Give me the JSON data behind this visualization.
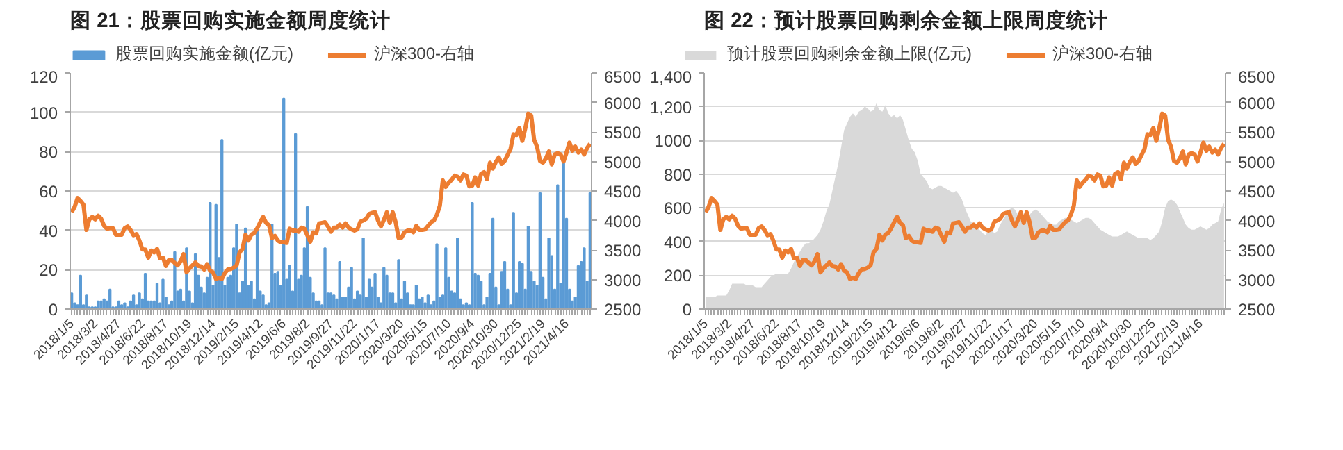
{
  "chart_data": [
    {
      "type": "bar",
      "title": "图 21：股票回购实施金额周度统计",
      "categories": [
        "2018/1/5",
        null,
        null,
        null,
        null,
        null,
        null,
        null,
        "2018/3/2",
        null,
        null,
        null,
        null,
        null,
        null,
        null,
        "2018/4/27",
        null,
        null,
        null,
        null,
        null,
        null,
        null,
        "2018/6/22",
        null,
        null,
        null,
        null,
        null,
        null,
        null,
        "2018/8/17",
        null,
        null,
        null,
        null,
        null,
        null,
        null,
        "2018/10/19",
        null,
        null,
        null,
        null,
        null,
        null,
        null,
        "2018/12/14",
        null,
        null,
        null,
        null,
        null,
        null,
        null,
        "2019/2/15",
        null,
        null,
        null,
        null,
        null,
        null,
        null,
        "2019/4/12",
        null,
        null,
        null,
        null,
        null,
        null,
        null,
        "2019/6/6",
        null,
        null,
        null,
        null,
        null,
        null,
        null,
        "2019/8/2",
        null,
        null,
        null,
        null,
        null,
        null,
        null,
        "2019/9/27",
        null,
        null,
        null,
        null,
        null,
        null,
        null,
        "2019/11/22",
        null,
        null,
        null,
        null,
        null,
        null,
        null,
        "2020/1/17",
        null,
        null,
        null,
        null,
        null,
        null,
        null,
        "2020/3/20",
        null,
        null,
        null,
        null,
        null,
        null,
        null,
        "2020/5/15",
        null,
        null,
        null,
        null,
        null,
        null,
        null,
        "2020/7/10",
        null,
        null,
        null,
        null,
        null,
        null,
        null,
        "2020/9/4",
        null,
        null,
        null,
        null,
        null,
        null,
        null,
        "2020/10/30",
        null,
        null,
        null,
        null,
        null,
        null,
        null,
        "2020/12/25",
        null,
        null,
        null,
        null,
        null,
        null,
        null,
        "2021/2/19",
        null,
        null,
        null,
        null,
        null,
        null,
        null,
        "2021/4/16",
        null,
        null,
        null,
        null,
        null,
        null,
        null,
        null
      ],
      "series": [
        {
          "name": "股票回购实施金额(亿元)",
          "color": "#5b9bd5",
          "values": [
            8,
            3,
            2,
            17,
            2,
            7,
            1,
            1,
            1,
            4,
            4,
            5,
            4,
            10,
            1,
            1,
            4,
            2,
            3,
            1,
            4,
            7,
            2,
            8,
            5,
            18,
            4,
            4,
            4,
            13,
            3,
            15,
            6,
            2,
            4,
            29,
            9,
            10,
            4,
            31,
            9,
            3,
            28,
            17,
            11,
            8,
            16,
            54,
            12,
            53,
            26,
            86,
            12,
            16,
            17,
            31,
            43,
            8,
            14,
            41,
            12,
            14,
            5,
            40,
            9,
            7,
            2,
            3,
            43,
            18,
            19,
            12,
            107,
            15,
            22,
            9,
            89,
            15,
            17,
            31,
            52,
            16,
            8,
            4,
            4,
            2,
            31,
            8,
            8,
            7,
            5,
            24,
            6,
            6,
            11,
            21,
            5,
            9,
            7,
            36,
            6,
            15,
            11,
            18,
            6,
            3,
            21,
            17,
            8,
            8,
            3,
            25,
            5,
            14,
            8,
            2,
            2,
            12,
            5,
            6,
            3,
            7,
            2,
            4,
            33,
            6,
            7,
            31,
            16,
            9,
            8,
            36,
            5,
            2,
            3,
            2,
            54,
            18,
            17,
            14,
            2,
            6,
            18,
            46,
            11,
            2,
            19,
            24,
            10,
            2,
            49,
            8,
            24,
            23,
            10,
            42,
            19,
            14,
            12,
            59,
            16,
            5,
            36,
            27,
            10,
            63,
            13,
            75,
            46,
            10,
            4,
            6,
            22,
            24,
            31,
            14,
            59
          ]
        },
        {
          "name": "沪深300-右轴",
          "type": "line",
          "axis": "y2",
          "color": "#ed7d31",
          "values": [
            4140,
            4230,
            4380,
            4330,
            4270,
            3840,
            4020,
            4060,
            4020,
            4080,
            4030,
            3910,
            3860,
            3870,
            3870,
            3760,
            3760,
            3760,
            3870,
            3900,
            3840,
            3750,
            3770,
            3660,
            3510,
            3510,
            3370,
            3490,
            3460,
            3520,
            3360,
            3370,
            3230,
            3330,
            3330,
            3280,
            3240,
            3310,
            3430,
            3120,
            3190,
            3240,
            3290,
            3230,
            3220,
            3170,
            3260,
            3150,
            3120,
            3010,
            3030,
            3010,
            3110,
            3170,
            3180,
            3200,
            3240,
            3460,
            3520,
            3760,
            3660,
            3760,
            3790,
            3870,
            3970,
            4060,
            3960,
            3920,
            3700,
            3740,
            3660,
            3630,
            3630,
            3620,
            3860,
            3830,
            3830,
            3810,
            3880,
            3860,
            3750,
            3640,
            3800,
            3780,
            3950,
            3960,
            3970,
            3900,
            3810,
            3880,
            3880,
            3930,
            3880,
            3950,
            3880,
            3850,
            3830,
            3850,
            3980,
            4000,
            4030,
            4110,
            4130,
            4140,
            4000,
            3900,
            4010,
            4140,
            3960,
            4140,
            3970,
            3700,
            3710,
            3800,
            3830,
            3830,
            3800,
            3910,
            3840,
            3840,
            3850,
            3910,
            3970,
            4000,
            4100,
            4250,
            4680,
            4570,
            4640,
            4690,
            4760,
            4740,
            4680,
            4780,
            4760,
            4580,
            4590,
            4730,
            4590,
            4790,
            4820,
            4700,
            4980,
            4880,
            4990,
            5070,
            4960,
            5010,
            5110,
            5210,
            5460,
            5450,
            5570,
            5350,
            5560,
            5810,
            5780,
            5370,
            5250,
            5010,
            4980,
            5050,
            5170,
            4950,
            5120,
            5140,
            5120,
            5000,
            5150,
            5320,
            5180,
            5250,
            5150,
            5200,
            5120,
            5230,
            5300
          ]
        }
      ],
      "ylim": [
        0,
        120
      ],
      "yticks": [
        0,
        20,
        40,
        60,
        80,
        100,
        120
      ],
      "y2lim": [
        2500,
        6500
      ],
      "y2ticks": [
        2500,
        3000,
        3500,
        4000,
        4500,
        5000,
        5500,
        6000,
        6500
      ],
      "grid": "y",
      "legend": "top"
    },
    {
      "type": "area",
      "title": "图 22：预计股票回购剩余金额上限周度统计",
      "categories": [
        "2018/1/5",
        null,
        null,
        null,
        null,
        null,
        null,
        null,
        "2018/3/2",
        null,
        null,
        null,
        null,
        null,
        null,
        null,
        "2018/4/27",
        null,
        null,
        null,
        null,
        null,
        null,
        null,
        "2018/6/22",
        null,
        null,
        null,
        null,
        null,
        null,
        null,
        "2018/8/17",
        null,
        null,
        null,
        null,
        null,
        null,
        null,
        "2018/10/19",
        null,
        null,
        null,
        null,
        null,
        null,
        null,
        "2018/12/14",
        null,
        null,
        null,
        null,
        null,
        null,
        null,
        "2019/2/15",
        null,
        null,
        null,
        null,
        null,
        null,
        null,
        "2019/4/12",
        null,
        null,
        null,
        null,
        null,
        null,
        null,
        "2019/6/6",
        null,
        null,
        null,
        null,
        null,
        null,
        null,
        "2019/8/2",
        null,
        null,
        null,
        null,
        null,
        null,
        null,
        "2019/9/27",
        null,
        null,
        null,
        null,
        null,
        null,
        null,
        "2019/11/22",
        null,
        null,
        null,
        null,
        null,
        null,
        null,
        "2020/1/17",
        null,
        null,
        null,
        null,
        null,
        null,
        null,
        "2020/3/20",
        null,
        null,
        null,
        null,
        null,
        null,
        null,
        "2020/5/15",
        null,
        null,
        null,
        null,
        null,
        null,
        null,
        "2020/7/10",
        null,
        null,
        null,
        null,
        null,
        null,
        null,
        "2020/9/4",
        null,
        null,
        null,
        null,
        null,
        null,
        null,
        "2020/10/30",
        null,
        null,
        null,
        null,
        null,
        null,
        null,
        "2020/12/25",
        null,
        null,
        null,
        null,
        null,
        null,
        null,
        "2021/2/19",
        null,
        null,
        null,
        null,
        null,
        null,
        null,
        "2021/4/16",
        null,
        null,
        null,
        null,
        null,
        null,
        null,
        null
      ],
      "series": [
        {
          "name": "预计股票回购剩余金额上限(亿元)",
          "color": "#d9d9d9",
          "values": [
            70,
            70,
            70,
            70,
            80,
            80,
            80,
            80,
            110,
            150,
            150,
            150,
            150,
            150,
            140,
            140,
            140,
            130,
            130,
            130,
            150,
            170,
            190,
            200,
            210,
            210,
            210,
            210,
            210,
            240,
            280,
            310,
            340,
            370,
            390,
            390,
            400,
            420,
            440,
            470,
            520,
            580,
            620,
            700,
            780,
            860,
            960,
            1060,
            1100,
            1140,
            1160,
            1140,
            1170,
            1180,
            1200,
            1190,
            1170,
            1180,
            1220,
            1180,
            1170,
            1210,
            1160,
            1140,
            1150,
            1130,
            1150,
            1120,
            1060,
            1000,
            950,
            930,
            880,
            800,
            780,
            760,
            720,
            710,
            720,
            730,
            730,
            720,
            710,
            700,
            690,
            700,
            680,
            650,
            600,
            560,
            520,
            500,
            480,
            470,
            450,
            440,
            460,
            470,
            450,
            460,
            500,
            530,
            560,
            590,
            600,
            590,
            560,
            540,
            520,
            530,
            560,
            580,
            590,
            580,
            560,
            540,
            520,
            510,
            500,
            500,
            520,
            530,
            540,
            540,
            530,
            520,
            510,
            520,
            530,
            540,
            540,
            530,
            510,
            490,
            470,
            460,
            450,
            440,
            430,
            430,
            430,
            440,
            450,
            460,
            450,
            440,
            430,
            420,
            420,
            420,
            420,
            410,
            420,
            440,
            460,
            520,
            600,
            640,
            650,
            640,
            620,
            580,
            540,
            500,
            480,
            470,
            470,
            480,
            490,
            480,
            470,
            480,
            500,
            510,
            520,
            590,
            630
          ]
        },
        {
          "name": "沪深300-右轴",
          "type": "line",
          "axis": "y2",
          "color": "#ed7d31",
          "values": [
            4140,
            4230,
            4380,
            4330,
            4270,
            3840,
            4020,
            4060,
            4020,
            4080,
            4030,
            3910,
            3860,
            3870,
            3870,
            3760,
            3760,
            3760,
            3870,
            3900,
            3840,
            3750,
            3770,
            3660,
            3510,
            3510,
            3370,
            3490,
            3460,
            3520,
            3360,
            3370,
            3230,
            3330,
            3330,
            3280,
            3240,
            3310,
            3430,
            3120,
            3190,
            3240,
            3290,
            3230,
            3220,
            3170,
            3260,
            3150,
            3120,
            3010,
            3030,
            3010,
            3110,
            3170,
            3180,
            3200,
            3240,
            3460,
            3520,
            3760,
            3660,
            3760,
            3790,
            3870,
            3970,
            4060,
            3960,
            3920,
            3700,
            3740,
            3660,
            3630,
            3630,
            3620,
            3860,
            3830,
            3830,
            3810,
            3880,
            3860,
            3750,
            3640,
            3800,
            3780,
            3950,
            3960,
            3970,
            3900,
            3810,
            3880,
            3880,
            3930,
            3880,
            3950,
            3880,
            3850,
            3830,
            3850,
            3980,
            4000,
            4030,
            4110,
            4130,
            4140,
            4000,
            3900,
            4010,
            4140,
            3960,
            4140,
            3970,
            3700,
            3710,
            3800,
            3830,
            3830,
            3800,
            3910,
            3840,
            3840,
            3850,
            3910,
            3970,
            4000,
            4100,
            4250,
            4680,
            4570,
            4640,
            4690,
            4760,
            4740,
            4680,
            4780,
            4760,
            4580,
            4590,
            4730,
            4590,
            4790,
            4820,
            4700,
            4980,
            4880,
            4990,
            5070,
            4960,
            5010,
            5110,
            5210,
            5460,
            5450,
            5570,
            5350,
            5560,
            5810,
            5780,
            5370,
            5250,
            5010,
            4980,
            5050,
            5170,
            4950,
            5120,
            5140,
            5120,
            5000,
            5150,
            5320,
            5180,
            5250,
            5150,
            5200,
            5120,
            5230,
            5300
          ]
        }
      ],
      "ylim": [
        0,
        1400
      ],
      "yticks": [
        0,
        200,
        400,
        600,
        800,
        1000,
        {
          "value": 1200,
          "label": "1,200"
        },
        {
          "value": 1400,
          "label": "1,400"
        }
      ],
      "y2lim": [
        2500,
        6500
      ],
      "y2ticks": [
        2500,
        3000,
        3500,
        4000,
        4500,
        5000,
        5500,
        6000,
        6500
      ],
      "grid": "y",
      "legend": "top"
    }
  ]
}
